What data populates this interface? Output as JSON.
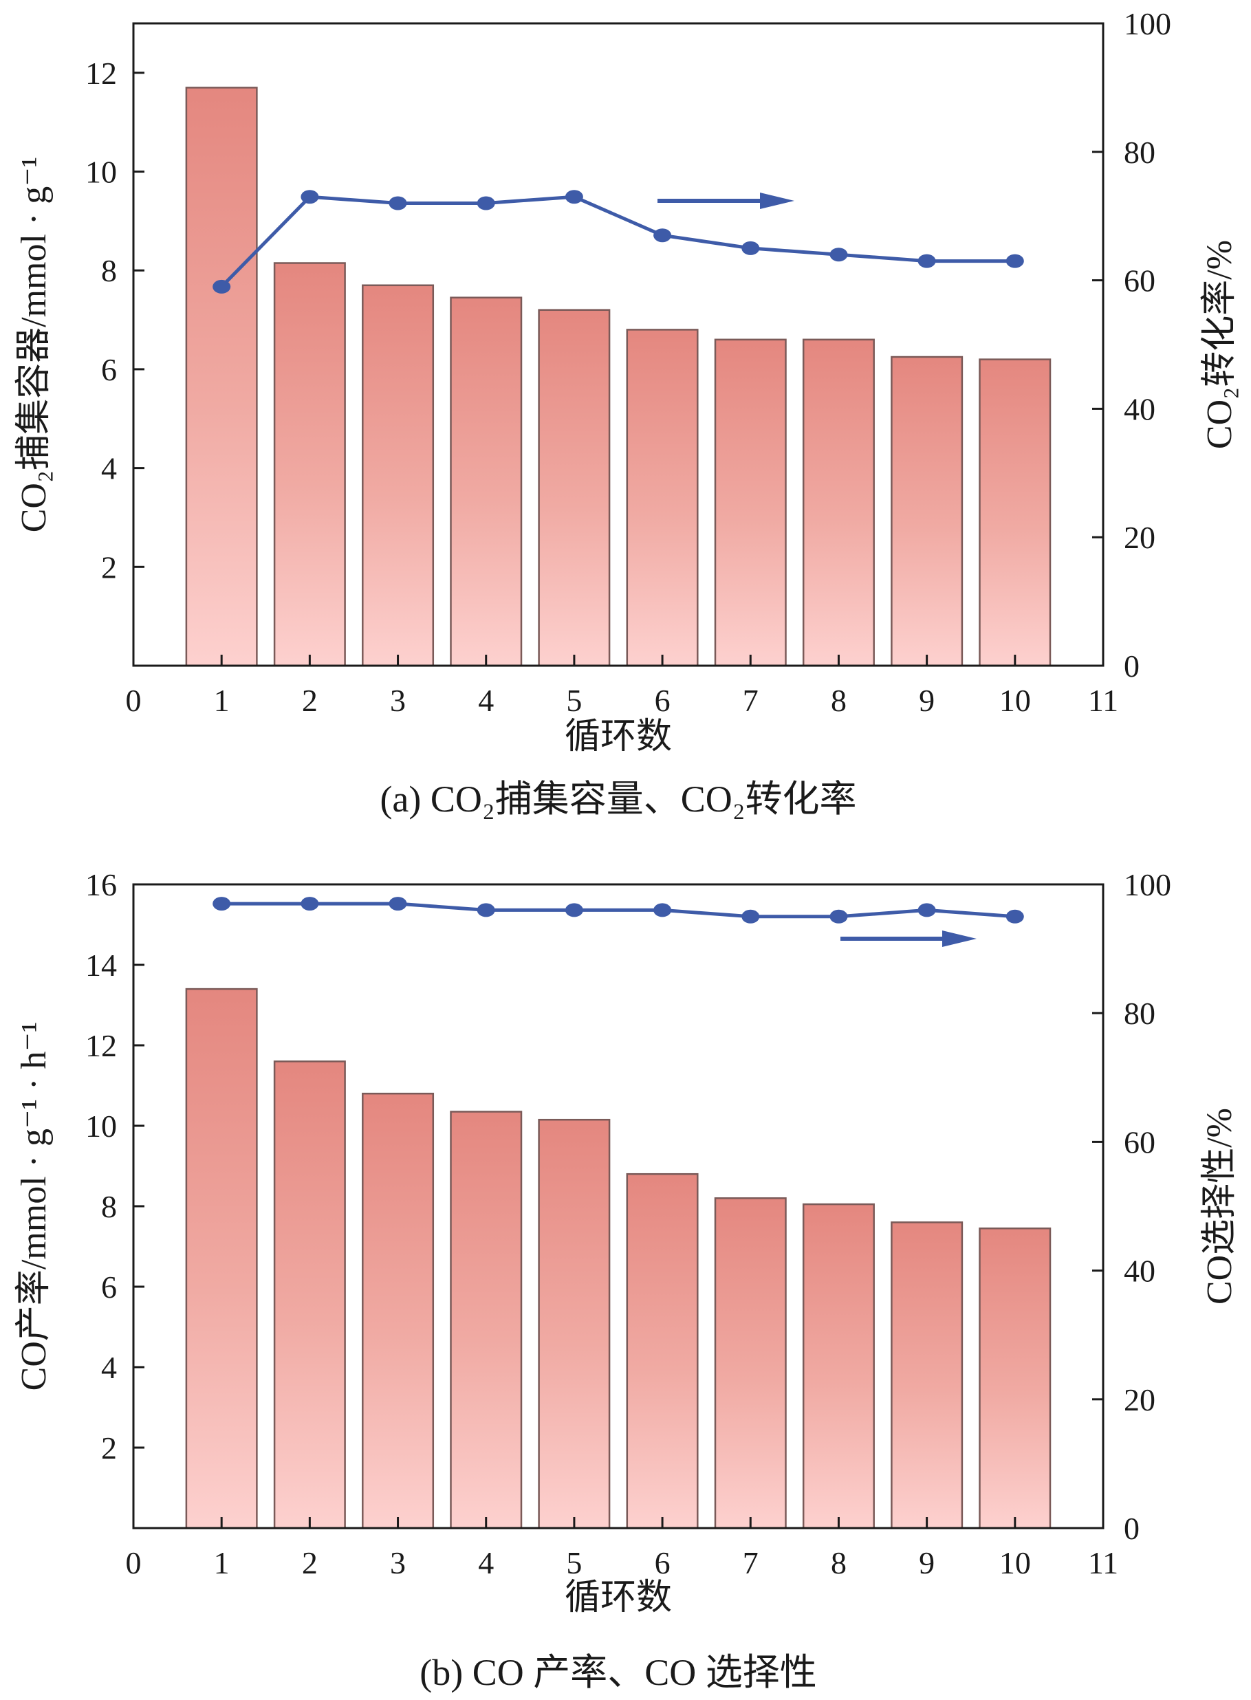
{
  "chart_data": [
    {
      "type": "bar",
      "caption": "(a) CO₂捕集容量、CO₂转化率",
      "xlabel": "循环数",
      "ylabel": "CO₂捕集容器/mmol · g⁻¹",
      "y2label": "CO₂转化率/%",
      "xlim": [
        0,
        11
      ],
      "ylim": [
        0,
        13
      ],
      "y2lim": [
        0,
        100
      ],
      "x_ticks": [
        "0",
        "1",
        "2",
        "3",
        "4",
        "5",
        "6",
        "7",
        "8",
        "9",
        "10",
        "11"
      ],
      "y_ticks": [
        "2",
        "4",
        "6",
        "8",
        "10",
        "12"
      ],
      "y2_ticks": [
        "0",
        "20",
        "40",
        "60",
        "80",
        "100"
      ],
      "categories": [
        "1",
        "2",
        "3",
        "4",
        "5",
        "6",
        "7",
        "8",
        "9",
        "10"
      ],
      "series": [
        {
          "type": "bar",
          "axis": "left",
          "values": [
            11.7,
            8.15,
            7.7,
            7.45,
            7.2,
            6.8,
            6.6,
            6.6,
            6.25,
            6.2
          ]
        },
        {
          "type": "line",
          "axis": "right",
          "values": [
            59,
            73,
            72,
            72,
            73,
            67,
            65,
            64,
            63,
            63
          ]
        }
      ],
      "arrow_direction": "right",
      "colors": {
        "bar_top": "#e4877f",
        "bar_bottom": "#fdd1cf",
        "bar_edge": "#7a5a58",
        "line": "#3e5ba8"
      }
    },
    {
      "type": "bar",
      "caption": "(b) CO 产率、CO 选择性",
      "xlabel": "循环数",
      "ylabel": "CO产率/mmol · g⁻¹ · h⁻¹",
      "y2label": "CO选择性/%",
      "xlim": [
        0,
        11
      ],
      "ylim": [
        0,
        16
      ],
      "y2lim": [
        0,
        100
      ],
      "x_ticks": [
        "0",
        "1",
        "2",
        "3",
        "4",
        "5",
        "6",
        "7",
        "8",
        "9",
        "10",
        "11"
      ],
      "y_ticks": [
        "2",
        "4",
        "6",
        "8",
        "10",
        "12",
        "14",
        "16"
      ],
      "y2_ticks": [
        "0",
        "20",
        "40",
        "60",
        "80",
        "100"
      ],
      "categories": [
        "1",
        "2",
        "3",
        "4",
        "5",
        "6",
        "7",
        "8",
        "9",
        "10"
      ],
      "series": [
        {
          "type": "bar",
          "axis": "left",
          "values": [
            13.4,
            11.6,
            10.8,
            10.35,
            10.15,
            8.8,
            8.2,
            8.05,
            7.6,
            7.45
          ]
        },
        {
          "type": "line",
          "axis": "right",
          "values": [
            97,
            97,
            97,
            96,
            96,
            96,
            95,
            95,
            96,
            95
          ]
        }
      ],
      "arrow_direction": "right",
      "colors": {
        "bar_top": "#e4877f",
        "bar_bottom": "#fdd1cf",
        "bar_edge": "#7a5a58",
        "line": "#3e5ba8"
      }
    }
  ]
}
